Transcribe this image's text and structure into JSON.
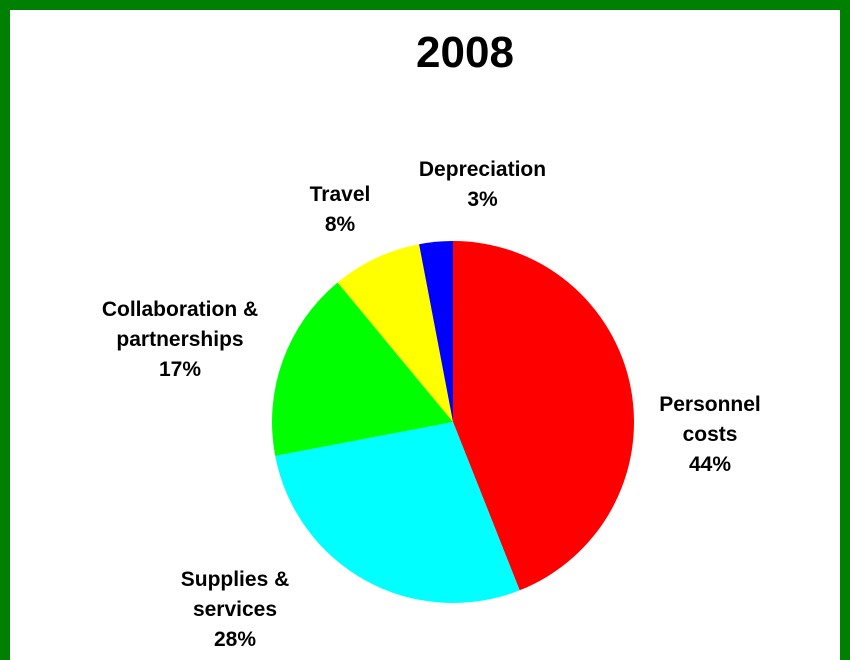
{
  "chart_data": {
    "type": "pie",
    "title": "2008",
    "categories": [
      "Personnel costs",
      "Supplies & services",
      "Collaboration & partnerships",
      "Travel",
      "Depreciation"
    ],
    "values": [
      44,
      28,
      17,
      8,
      3
    ],
    "value_labels": [
      "44%",
      "28%",
      "17%",
      "8%",
      "3%"
    ],
    "colors": [
      "#ff0000",
      "#00ffff",
      "#00ff00",
      "#ffff00",
      "#0000ff"
    ]
  }
}
